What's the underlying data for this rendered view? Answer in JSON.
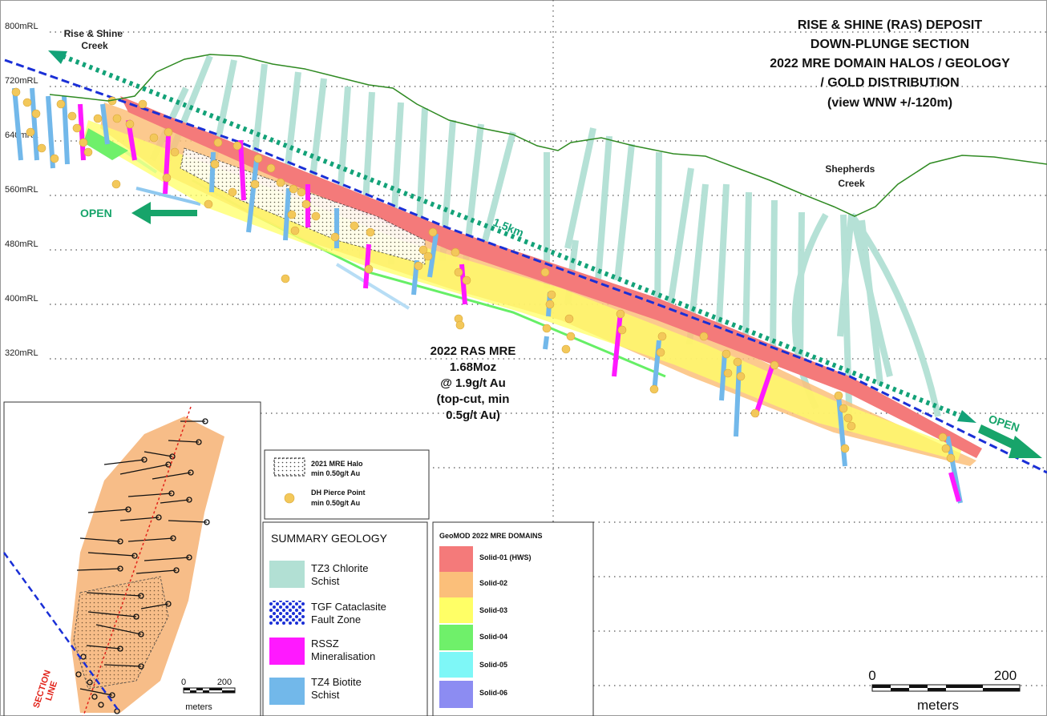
{
  "title": {
    "line1": "RISE & SHINE (RAS) DEPOSIT",
    "line2": "DOWN-PLUNGE SECTION",
    "line3": "2022 MRE DOMAIN HALOS / GEOLOGY",
    "line4": "/ GOLD DISTRIBUTION",
    "line5": "(view WNW +/-120m)"
  },
  "elevation_labels": [
    "800mRL",
    "720mRL",
    "640mRL",
    "560mRL",
    "480mRL",
    "400mRL",
    "320mRL"
  ],
  "creeks": {
    "rise_shine_line1": "Rise & Shine",
    "rise_shine_line2": "Creek",
    "shepherds_line1": "Shepherds",
    "shepherds_line2": "Creek"
  },
  "open_labels": {
    "left": "OPEN",
    "right": "OPEN"
  },
  "plunge_length": "1.5km",
  "mre_callout": {
    "line1": "2022 RAS MRE",
    "line2": "1.68Moz",
    "line3": "@ 1.9g/t Au",
    "line4": "(top-cut, min",
    "line5": "0.5g/t Au)"
  },
  "legend_halo": {
    "halo_line1": "2021 MRE Halo",
    "halo_line2": "min 0.50g/t Au",
    "pierce_line1": "DH Pierce Point",
    "pierce_line2": "min 0.50g/t Au"
  },
  "legend_geology": {
    "title": "SUMMARY GEOLOGY",
    "items": [
      {
        "line1": "TZ3 Chlorite",
        "line2": "Schist",
        "color": "#b2e0d4"
      },
      {
        "line1": "TGF Cataclasite",
        "line2": "Fault Zone",
        "color": "#1a2fd6"
      },
      {
        "line1": "RSSZ",
        "line2": "Mineralisation",
        "color": "#ff19ff"
      },
      {
        "line1": "TZ4 Biotite",
        "line2": "Schist",
        "color": "#72b8ea"
      }
    ]
  },
  "legend_domains": {
    "title": "GeoMOD 2022 MRE DOMAINS",
    "items": [
      {
        "label": "Solid-01 (HWS)",
        "color": "#f47a7a"
      },
      {
        "label": "Solid-02",
        "color": "#fbbf7a"
      },
      {
        "label": "Solid-03",
        "color": "#ffff66"
      },
      {
        "label": "Solid-04",
        "color": "#6ff06a"
      },
      {
        "label": "Solid-05",
        "color": "#7ef7f7"
      },
      {
        "label": "Solid-06",
        "color": "#8c8cf2"
      }
    ]
  },
  "scale_bar": {
    "start": "0",
    "end": "200",
    "unit": "meters"
  },
  "inset": {
    "section_label_line1": "SECTION",
    "section_label_line2": "LINE",
    "scale_start": "0",
    "scale_end": "200",
    "scale_unit": "meters"
  },
  "colors": {
    "chlorite": "#b2e0d4",
    "biotite": "#72b8ea",
    "rssz": "#ff19ff",
    "solid01": "#f47a7a",
    "solid02": "#fbbf7a",
    "solid03": "#ffff66",
    "solid04": "#6ff06a",
    "solid05": "#7ef7f7",
    "pierce": "#f3c85a",
    "topography": "#2f8a22",
    "fault": "#1a2fd6",
    "open_arrow": "#17a46a"
  }
}
